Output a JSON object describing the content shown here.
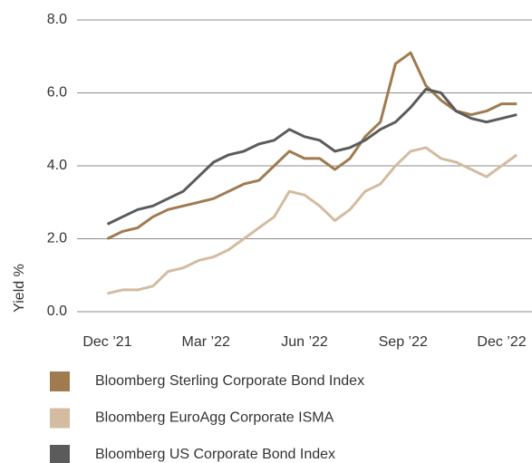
{
  "chart_data": {
    "type": "line",
    "y_label": "Yield %",
    "x": [
      0,
      2,
      4,
      6,
      8,
      10,
      12,
      14,
      16,
      18,
      20,
      22,
      24,
      26,
      28,
      30,
      32,
      34,
      36,
      38,
      40,
      42,
      44,
      46,
      48,
      50,
      52,
      54
    ],
    "series": [
      {
        "name": "Bloomberg Sterling Corporate Bond Index",
        "color": "#a07b50",
        "values": [
          2.0,
          2.2,
          2.3,
          2.6,
          2.8,
          2.9,
          3.0,
          3.1,
          3.3,
          3.5,
          3.6,
          4.0,
          4.4,
          4.2,
          4.2,
          3.9,
          4.2,
          4.8,
          5.2,
          6.8,
          7.1,
          6.2,
          5.8,
          5.5,
          5.4,
          5.5,
          5.7,
          5.7
        ]
      },
      {
        "name": "Bloomberg EuroAgg Corporate ISMA",
        "color": "#d3bca1",
        "values": [
          0.5,
          0.6,
          0.6,
          0.7,
          1.1,
          1.2,
          1.4,
          1.5,
          1.7,
          2.0,
          2.3,
          2.6,
          3.3,
          3.2,
          2.9,
          2.5,
          2.8,
          3.3,
          3.5,
          4.0,
          4.4,
          4.5,
          4.2,
          4.1,
          3.9,
          3.7,
          4.0,
          4.3
        ]
      },
      {
        "name": "Bloomberg US Corporate Bond Index",
        "color": "#5b5b5b",
        "values": [
          2.4,
          2.6,
          2.8,
          2.9,
          3.1,
          3.3,
          3.7,
          4.1,
          4.3,
          4.4,
          4.6,
          4.7,
          5.0,
          4.8,
          4.7,
          4.4,
          4.5,
          4.7,
          5.0,
          5.2,
          5.6,
          6.1,
          6.0,
          5.5,
          5.3,
          5.2,
          5.3,
          5.4
        ]
      }
    ],
    "xlim": [
      -4,
      56
    ],
    "xticks": [
      {
        "value": 0,
        "label": "Dec ’21"
      },
      {
        "value": 13,
        "label": "Mar ’22"
      },
      {
        "value": 26,
        "label": "Jun ’22"
      },
      {
        "value": 39,
        "label": "Sep ’22"
      },
      {
        "value": 52,
        "label": "Dec ’22"
      }
    ],
    "ylim": [
      0,
      8
    ],
    "yticks": [
      {
        "value": 0,
        "label": "0.0"
      },
      {
        "value": 2,
        "label": "2.0"
      },
      {
        "value": 4,
        "label": "4.0"
      },
      {
        "value": 6,
        "label": "6.0"
      },
      {
        "value": 8,
        "label": "8.0"
      }
    ],
    "grid": true,
    "legend": "bottom"
  }
}
